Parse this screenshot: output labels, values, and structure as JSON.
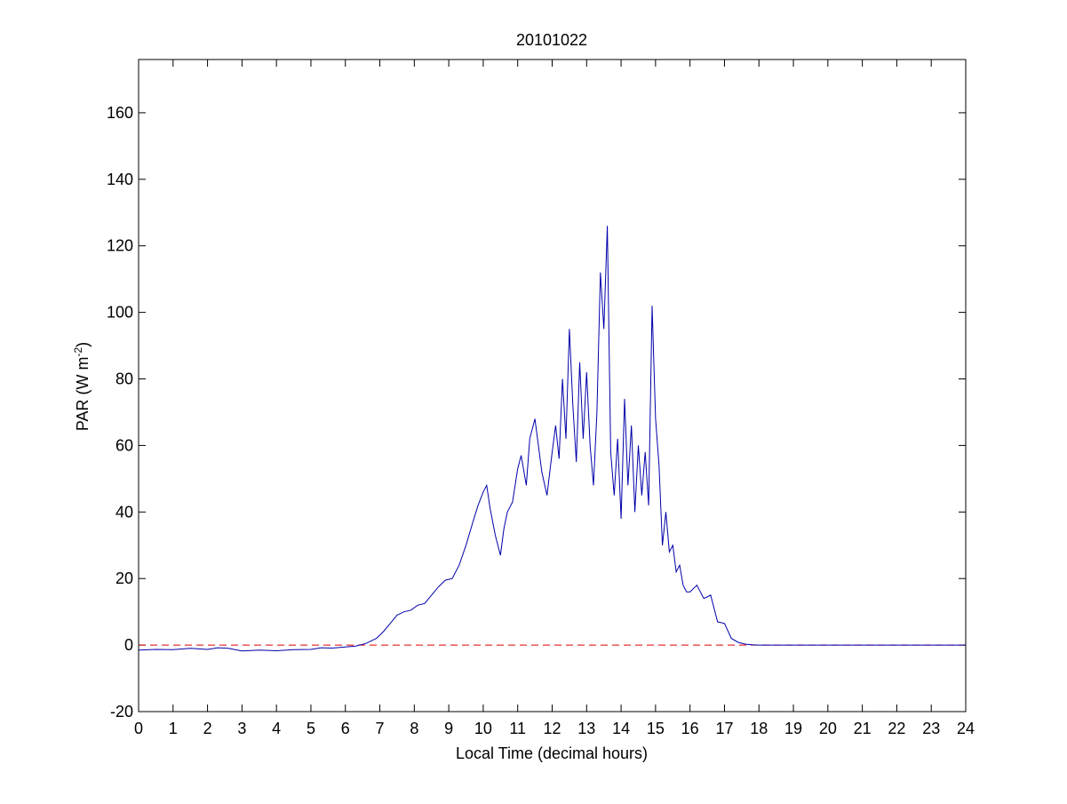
{
  "chart_data": {
    "type": "line",
    "title": "20101022",
    "xlabel": "Local Time (decimal hours)",
    "ylabel": {
      "text": "PAR (W m",
      "superscript": "-2",
      "suffix": ")"
    },
    "xlim": [
      0,
      24
    ],
    "ylim": [
      -20,
      176
    ],
    "xticks": [
      0,
      1,
      2,
      3,
      4,
      5,
      6,
      7,
      8,
      9,
      10,
      11,
      12,
      13,
      14,
      15,
      16,
      17,
      18,
      19,
      20,
      21,
      22,
      23,
      24
    ],
    "yticks": [
      -20,
      0,
      20,
      40,
      60,
      80,
      100,
      120,
      140,
      160
    ],
    "grid": false,
    "colors": {
      "series": "#0000aa",
      "reference_line": "#dd0000",
      "axes": "#000000",
      "background": "#ffffff"
    },
    "reference_line": {
      "y": 0,
      "style": "dashed"
    },
    "series": [
      {
        "x": [
          0,
          0.5,
          1,
          1.5,
          2,
          2.3,
          2.6,
          3,
          3.5,
          4,
          4.5,
          5,
          5.3,
          5.6,
          6,
          6.3,
          6.6,
          6.9,
          7.1,
          7.3,
          7.5,
          7.7,
          7.9,
          8.1,
          8.3,
          8.5,
          8.7,
          8.9,
          9.1,
          9.3,
          9.5,
          9.7,
          9.85,
          10.0,
          10.1,
          10.2,
          10.35,
          10.5,
          10.6,
          10.7,
          10.85,
          11.0,
          11.1,
          11.25,
          11.35,
          11.5,
          11.6,
          11.7,
          11.85,
          12.0,
          12.1,
          12.2,
          12.3,
          12.4,
          12.5,
          12.6,
          12.7,
          12.8,
          12.9,
          13.0,
          13.1,
          13.2,
          13.3,
          13.4,
          13.5,
          13.6,
          13.7,
          13.8,
          13.9,
          14.0,
          14.1,
          14.2,
          14.3,
          14.4,
          14.5,
          14.6,
          14.7,
          14.8,
          14.9,
          15.0,
          15.1,
          15.2,
          15.3,
          15.4,
          15.5,
          15.6,
          15.7,
          15.8,
          15.9,
          16.0,
          16.2,
          16.4,
          16.6,
          16.8,
          17.0,
          17.2,
          17.4,
          17.6,
          17.8,
          18.0,
          19,
          20,
          21,
          22,
          23,
          24
        ],
        "y": [
          -1.5,
          -1.3,
          -1.4,
          -1.0,
          -1.3,
          -0.8,
          -1.0,
          -1.8,
          -1.5,
          -1.7,
          -1.4,
          -1.3,
          -0.8,
          -0.9,
          -0.6,
          -0.3,
          0.5,
          2.0,
          4.0,
          6.5,
          9.0,
          10.0,
          10.5,
          12.0,
          12.5,
          15.0,
          17.5,
          19.5,
          20.0,
          24.0,
          30.0,
          37.0,
          42.0,
          46.0,
          48.0,
          41.0,
          33.0,
          27.0,
          35.0,
          40.0,
          43.0,
          53.0,
          57.0,
          48.0,
          62.0,
          68.0,
          60.0,
          52.0,
          45.0,
          58.0,
          66.0,
          56.0,
          80.0,
          62.0,
          95.0,
          72.0,
          55.0,
          85.0,
          62.0,
          82.0,
          60.0,
          48.0,
          70.0,
          112.0,
          95.0,
          126.0,
          58.0,
          45.0,
          62.0,
          38.0,
          74.0,
          48.0,
          66.0,
          40.0,
          60.0,
          45.0,
          58.0,
          42.0,
          102.0,
          68.0,
          54.0,
          30.0,
          40.0,
          28.0,
          30.0,
          22.0,
          24.0,
          18.0,
          16.0,
          16.0,
          18.0,
          14.0,
          15.0,
          7.0,
          6.5,
          2.0,
          0.8,
          0.3,
          0.1,
          0.0,
          0.0,
          0.0,
          0.0,
          0.0,
          0.0,
          0.0
        ]
      }
    ]
  }
}
